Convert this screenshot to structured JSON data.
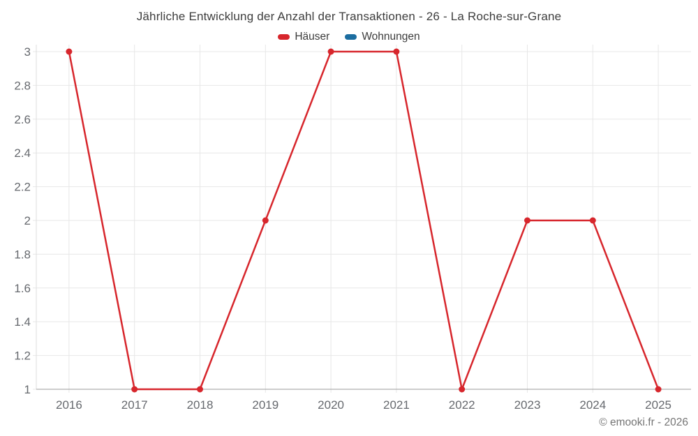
{
  "header": {
    "title": "Jährliche Entwicklung der Anzahl der Transaktionen - 26 - La Roche-sur-Grane"
  },
  "legend": {
    "items": [
      {
        "label": "Häuser",
        "color": "#d7262c"
      },
      {
        "label": "Wohnungen",
        "color": "#1c6da0"
      }
    ]
  },
  "footer": {
    "copyright": "© emooki.fr - 2026"
  },
  "chart_data": {
    "type": "line",
    "title": "Jährliche Entwicklung der Anzahl der Transaktionen - 26 - La Roche-sur-Grane",
    "categories": [
      "2016",
      "2017",
      "2018",
      "2019",
      "2020",
      "2021",
      "2022",
      "2023",
      "2024",
      "2025"
    ],
    "series": [
      {
        "name": "Häuser",
        "color": "#d7262c",
        "values": [
          3,
          1,
          1,
          2,
          3,
          3,
          1,
          2,
          2,
          1
        ]
      },
      {
        "name": "Wohnungen",
        "color": "#1c6da0",
        "values": []
      }
    ],
    "xlabel": "",
    "ylabel": "",
    "ylim": [
      1,
      3
    ],
    "y_ticks": [
      "1",
      "1.2",
      "1.4",
      "1.6",
      "1.8",
      "2",
      "2.2",
      "2.4",
      "2.6",
      "2.8",
      "3"
    ],
    "grid": true,
    "legend_position": "top",
    "marker_radius": 4.5,
    "line_width": 2.5,
    "colors": {
      "grid": "#e7e7e7",
      "x_axis_line": "#9b9b9b",
      "y_axis_line": "#dedede",
      "tick_label": "#66696e"
    }
  }
}
